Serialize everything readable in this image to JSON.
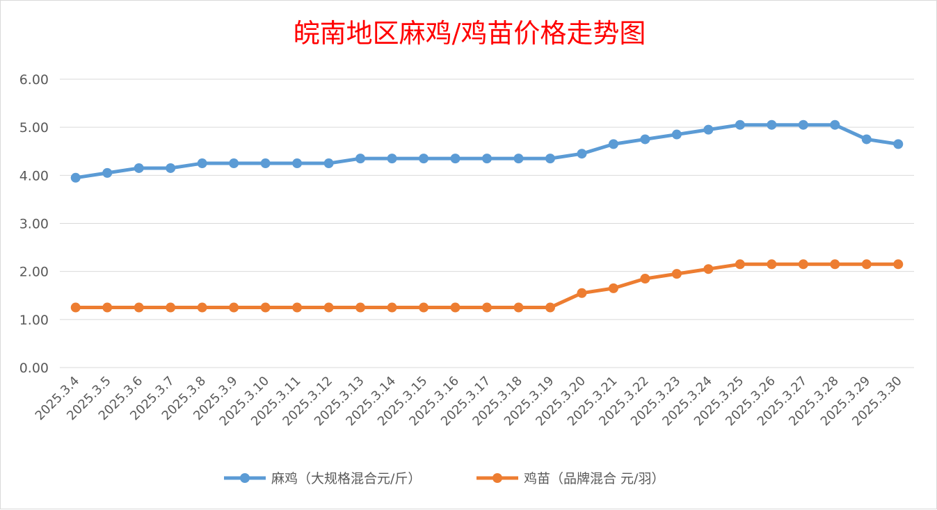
{
  "chart_data": {
    "type": "line",
    "title": "皖南地区麻鸡/鸡苗价格走势图",
    "xlabel": "",
    "ylabel": "",
    "ylim": [
      0,
      6
    ],
    "yticks": [
      "0.00",
      "1.00",
      "2.00",
      "3.00",
      "4.00",
      "5.00",
      "6.00"
    ],
    "grid": true,
    "legend_position": "bottom",
    "categories": [
      "2025.3.4",
      "2025.3.5",
      "2025.3.6",
      "2025.3.7",
      "2025.3.8",
      "2025.3.9",
      "2025.3.10",
      "2025.3.11",
      "2025.3.12",
      "2025.3.13",
      "2025.3.14",
      "2025.3.15",
      "2025.3.16",
      "2025.3.17",
      "2025.3.18",
      "2025.3.19",
      "2025.3.20",
      "2025.3.21",
      "2025.3.22",
      "2025.3.23",
      "2025.3.24",
      "2025.3.25",
      "2025.3.26",
      "2025.3.27",
      "2025.3.28",
      "2025.3.29",
      "2025.3.30"
    ],
    "series": [
      {
        "name": "麻鸡（大规格混合元/斤）",
        "color": "#5b9bd5",
        "values": [
          3.95,
          4.05,
          4.15,
          4.15,
          4.25,
          4.25,
          4.25,
          4.25,
          4.25,
          4.35,
          4.35,
          4.35,
          4.35,
          4.35,
          4.35,
          4.35,
          4.45,
          4.65,
          4.75,
          4.85,
          4.95,
          5.05,
          5.05,
          5.05,
          5.05,
          4.75,
          4.65
        ]
      },
      {
        "name": "鸡苗（品牌混合 元/羽）",
        "color": "#ed7d31",
        "values": [
          1.25,
          1.25,
          1.25,
          1.25,
          1.25,
          1.25,
          1.25,
          1.25,
          1.25,
          1.25,
          1.25,
          1.25,
          1.25,
          1.25,
          1.25,
          1.25,
          1.55,
          1.65,
          1.85,
          1.95,
          2.05,
          2.15,
          2.15,
          2.15,
          2.15,
          2.15,
          2.15
        ]
      }
    ]
  }
}
